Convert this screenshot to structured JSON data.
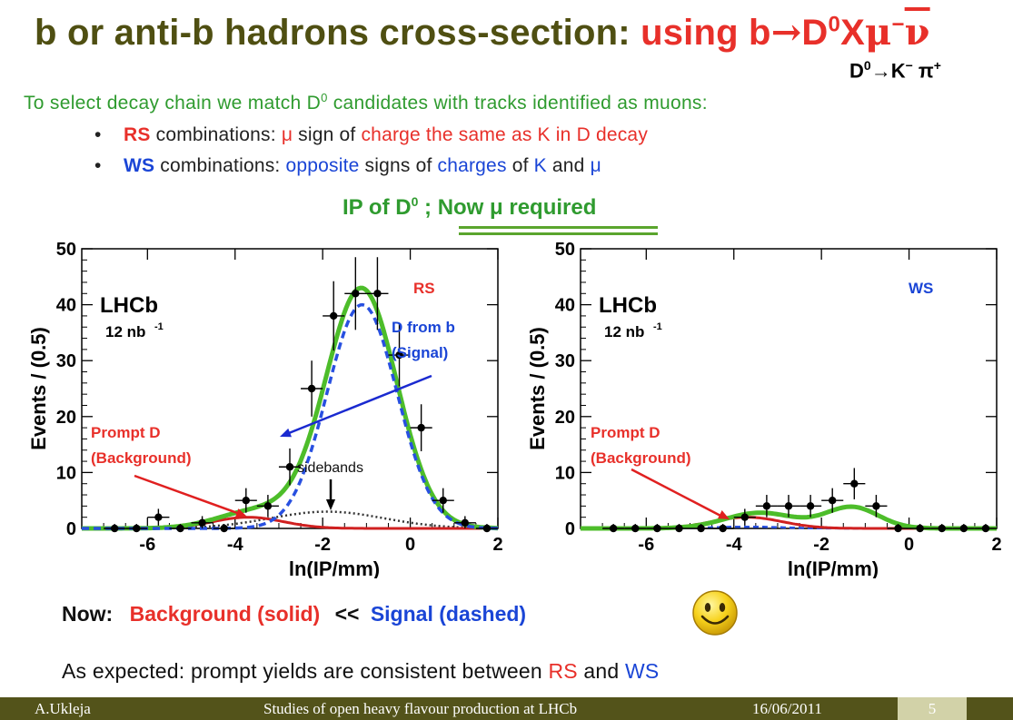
{
  "slide": {
    "title_prefix": "b or anti-b hadrons cross-section: ",
    "title_highlight": "using b",
    "title_arrow": "→",
    "title_d": "D",
    "title_d_sup": "0",
    "title_x": "X",
    "title_mu": "μ",
    "title_mu_sup": "−",
    "title_nu": "ν",
    "subdecay_d": "D",
    "subdecay_d_sup": "0",
    "subdecay_arrow": "→",
    "subdecay_k": "K",
    "subdecay_k_sup": "−",
    "subdecay_pi": " π",
    "subdecay_pi_sup": "+",
    "intro_text": "To select decay chain we match D",
    "intro_sup": "0",
    "intro_rest": " candidates with tracks identified as muons:",
    "bullets": [
      {
        "dot": "•",
        "key": "RS",
        "p1": " combinations: ",
        "mu": "μ",
        "p2": " sign of ",
        "red": "charge the same as K in D decay",
        "p3": ""
      },
      {
        "dot": "•",
        "key": "WS",
        "p1": " combinations: ",
        "blue1": "opposite",
        "p2": " signs of ",
        "blue2": "charges",
        "p3": " of ",
        "blue3": "K",
        "p4": " and ",
        "mu": "μ"
      }
    ],
    "ip_header": "IP of D",
    "ip_header_sup": "0",
    "ip_header_rest": " ; Now μ required",
    "summary": {
      "now": "Now:",
      "background": "Background (solid)",
      "ll": "<<",
      "signal": "Signal (dashed)"
    },
    "expected": {
      "p1": "As expected: prompt yields are consistent between ",
      "rs": "RS",
      "p2": " and ",
      "ws": "WS"
    },
    "footer": {
      "author": "A.Ukleja",
      "talk": "Studies of open heavy flavour production at LHCb",
      "date": "16/06/2011",
      "page": "5"
    }
  },
  "colors": {
    "title": "#4f4f12",
    "red": "#e8302a",
    "green": "#2f9b2f",
    "blue": "#1a45d6",
    "fit_green": "#4dbd2a",
    "footer": "#53531a"
  },
  "icons": {
    "smiley": "smiley-face-icon"
  },
  "chart_data": [
    {
      "type": "scatter",
      "panel": "RS",
      "xlabel": "ln(IP/mm)",
      "ylabel": "Events / (0.5)",
      "xlim": [
        -7.5,
        2
      ],
      "ylim": [
        0,
        50
      ],
      "xticks": [
        -6,
        -4,
        -2,
        0,
        2
      ],
      "yticks": [
        0,
        10,
        20,
        30,
        40,
        50
      ],
      "labels": {
        "experiment": "LHCb",
        "lumi": "12 nb",
        "lumi_sup": "-1",
        "panel_label": "RS",
        "signal_annot_1": "D from b",
        "signal_annot_2": "(Signal)",
        "bkg_annot_1": "Prompt D",
        "bkg_annot_2": "(Background)",
        "sideband_annot": "sidebands"
      },
      "points": [
        {
          "x": -6.75,
          "y": 0,
          "err": 0.8
        },
        {
          "x": -6.25,
          "y": 0,
          "err": 0.8
        },
        {
          "x": -5.75,
          "y": 2,
          "err": 1.5
        },
        {
          "x": -5.25,
          "y": 0,
          "err": 0.8
        },
        {
          "x": -4.75,
          "y": 1,
          "err": 1.2
        },
        {
          "x": -4.25,
          "y": 0,
          "err": 0.8
        },
        {
          "x": -3.75,
          "y": 5,
          "err": 2.2
        },
        {
          "x": -3.25,
          "y": 4,
          "err": 2.0
        },
        {
          "x": -2.75,
          "y": 11,
          "err": 3.3
        },
        {
          "x": -2.25,
          "y": 25,
          "err": 5.0
        },
        {
          "x": -1.75,
          "y": 38,
          "err": 6.2
        },
        {
          "x": -1.25,
          "y": 42,
          "err": 6.5
        },
        {
          "x": -0.75,
          "y": 42,
          "err": 6.5
        },
        {
          "x": -0.25,
          "y": 31,
          "err": 5.6
        },
        {
          "x": 0.25,
          "y": 18,
          "err": 4.2
        },
        {
          "x": 0.75,
          "y": 5,
          "err": 2.2
        },
        {
          "x": 1.25,
          "y": 1,
          "err": 1.2
        },
        {
          "x": 1.75,
          "y": 0,
          "err": 0.8
        }
      ],
      "signal": {
        "mu": -1.1,
        "sigma": 0.8,
        "amp": 40
      },
      "total_peak": 43,
      "background": {
        "mu": -3.7,
        "sigma": 0.8,
        "amp": 2.0
      },
      "sidebands": {
        "mu": -1.9,
        "sigma": 1.3,
        "amp": 3.0
      }
    },
    {
      "type": "scatter",
      "panel": "WS",
      "xlabel": "ln(IP/mm)",
      "ylabel": "Events / (0.5)",
      "xlim": [
        -7.5,
        2
      ],
      "ylim": [
        0,
        50
      ],
      "xticks": [
        -6,
        -4,
        -2,
        0,
        2
      ],
      "yticks": [
        0,
        10,
        20,
        30,
        40,
        50
      ],
      "labels": {
        "experiment": "LHCb",
        "lumi": "12 nb",
        "lumi_sup": "-1",
        "panel_label": "WS",
        "bkg_annot_1": "Prompt D",
        "bkg_annot_2": "(Background)"
      },
      "points": [
        {
          "x": -6.75,
          "y": 0,
          "err": 0.8
        },
        {
          "x": -6.25,
          "y": 0,
          "err": 0.8
        },
        {
          "x": -5.75,
          "y": 0,
          "err": 0.8
        },
        {
          "x": -5.25,
          "y": 0,
          "err": 0.8
        },
        {
          "x": -4.75,
          "y": 0,
          "err": 0.8
        },
        {
          "x": -4.25,
          "y": 0,
          "err": 0.8
        },
        {
          "x": -3.75,
          "y": 2,
          "err": 1.5
        },
        {
          "x": -3.25,
          "y": 4,
          "err": 2.0
        },
        {
          "x": -2.75,
          "y": 4,
          "err": 2.0
        },
        {
          "x": -2.25,
          "y": 4,
          "err": 2.0
        },
        {
          "x": -1.75,
          "y": 5,
          "err": 2.2
        },
        {
          "x": -1.25,
          "y": 8,
          "err": 2.8
        },
        {
          "x": -0.75,
          "y": 4,
          "err": 2.0
        },
        {
          "x": -0.25,
          "y": 0,
          "err": 0.8
        },
        {
          "x": 0.25,
          "y": 0,
          "err": 0.8
        },
        {
          "x": 0.75,
          "y": 0,
          "err": 0.8
        },
        {
          "x": 1.25,
          "y": 0,
          "err": 0.8
        },
        {
          "x": 1.75,
          "y": 0,
          "err": 0.8
        }
      ],
      "background": {
        "mu": -3.7,
        "sigma": 0.8,
        "amp": 2.0
      },
      "total_bumps": [
        {
          "mu": -3.4,
          "sigma": 0.8,
          "amp": 2.8
        },
        {
          "mu": -1.3,
          "sigma": 0.6,
          "amp": 3.8
        }
      ]
    }
  ]
}
